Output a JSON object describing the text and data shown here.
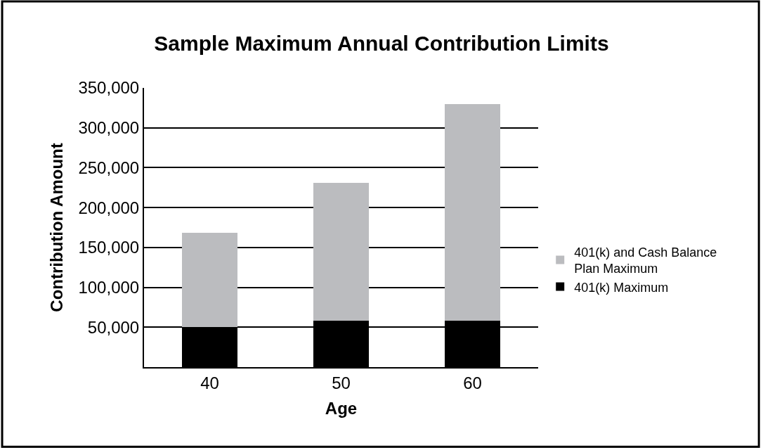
{
  "chart_data": {
    "type": "bar",
    "title": "Sample Maximum Annual Contribution Limits",
    "xlabel": "Age",
    "ylabel": "Contribution Amount",
    "categories": [
      "40",
      "50",
      "60"
    ],
    "stacked": true,
    "series": [
      {
        "name": "401(k) Maximum",
        "color": "#000000",
        "values": [
          50000,
          58000,
          58000
        ]
      },
      {
        "name": "401(k) and Cash Balance Plan Maximum",
        "color": "#bbbcbf",
        "values": [
          118000,
          173000,
          272000
        ]
      }
    ],
    "ylim": [
      0,
      350000
    ],
    "yticks": [
      {
        "value": 50000,
        "label": "50,000"
      },
      {
        "value": 100000,
        "label": "100,000"
      },
      {
        "value": 150000,
        "label": "150,000"
      },
      {
        "value": 200000,
        "label": "200,000"
      },
      {
        "value": 250000,
        "label": "250,000"
      },
      {
        "value": 300000,
        "label": "300,000"
      },
      {
        "value": 350000,
        "label": "350,000"
      }
    ],
    "grid": "y",
    "legend": "right"
  }
}
